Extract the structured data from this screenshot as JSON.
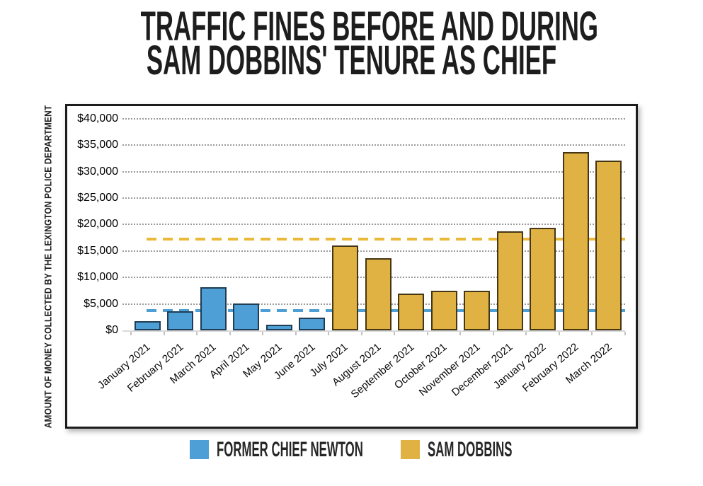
{
  "title": {
    "line1": "TRAFFIC FINES BEFORE AND DURING",
    "line2": "SAM DOBBINS' TENURE AS CHIEF"
  },
  "chart_data": {
    "type": "bar",
    "title": "TRAFFIC FINES BEFORE AND DURING SAM DOBBINS' TENURE AS CHIEF",
    "ylabel": "AMOUNT OF MONEY COLLECTED BY THE LEXINGTON POLICE DEPARTMENT",
    "xlabel": "",
    "ylim": [
      0,
      40000
    ],
    "ytick_step": 5000,
    "ytick_labels": [
      "$0",
      "$5,000",
      "$10,000",
      "$15,000",
      "$20,000",
      "$25,000",
      "$30,000",
      "$35,000",
      "$40,000"
    ],
    "grid": "horizontal-dotted",
    "legend_position": "bottom",
    "categories": [
      "January 2021",
      "February 2021",
      "March 2021",
      "April 2021",
      "May 2021",
      "June 2021",
      "July 2021",
      "August 2021",
      "September 2021",
      "October 2021",
      "November 2021",
      "December 2021",
      "January 2022",
      "February 2022",
      "March 2022"
    ],
    "series": [
      {
        "name": "FORMER CHIEF NEWTON",
        "color": "#4D9FD6",
        "border_color": "#1F3D55",
        "values": [
          1800,
          3600,
          8200,
          5100,
          1100,
          2400,
          null,
          null,
          null,
          null,
          null,
          null,
          null,
          null,
          null
        ]
      },
      {
        "name": "SAM DOBBINS",
        "color": "#E0B143",
        "border_color": "#453614",
        "values": [
          null,
          null,
          null,
          null,
          null,
          null,
          16000,
          13600,
          7000,
          7500,
          7500,
          18700,
          19400,
          33700,
          32100
        ]
      }
    ],
    "reference_lines": [
      {
        "value": 3700,
        "style": "dashed",
        "color": "#4D9FD6"
      },
      {
        "value": 17300,
        "style": "dashed",
        "color": "#EBB939"
      }
    ]
  },
  "legend": {
    "items": [
      {
        "label": "FORMER CHIEF NEWTON",
        "color": "#4D9FD6"
      },
      {
        "label": "SAM DOBBINS",
        "color": "#E0B143"
      }
    ]
  }
}
